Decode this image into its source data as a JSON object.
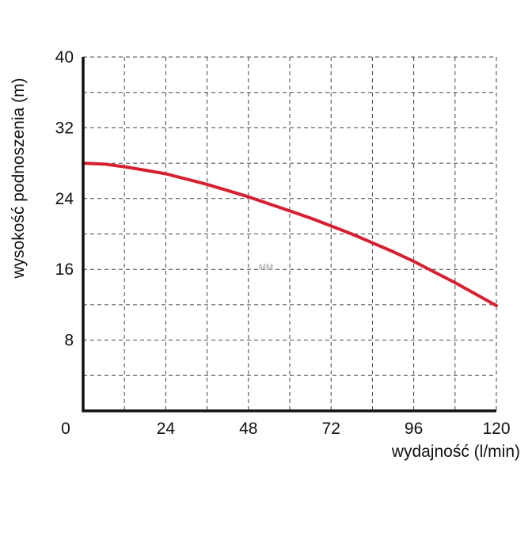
{
  "chart_data": {
    "type": "line",
    "xlabel": "wydajność (l/min)",
    "ylabel": "wysokość podnoszenia (m)",
    "xlim": [
      0,
      120
    ],
    "ylim": [
      0,
      40
    ],
    "x_ticks": [
      0,
      24,
      48,
      72,
      96,
      120
    ],
    "y_ticks": [
      8,
      16,
      24,
      32,
      40
    ],
    "x_grid": [
      0,
      12,
      24,
      36,
      48,
      60,
      72,
      84,
      96,
      108,
      120
    ],
    "y_grid": [
      4,
      8,
      12,
      16,
      20,
      24,
      28,
      32,
      36,
      40
    ],
    "grid": true,
    "watermark": "MM",
    "series": [
      {
        "color": "#d62030",
        "x": [
          0,
          6,
          12,
          18,
          24,
          30,
          36,
          42,
          48,
          54,
          60,
          66,
          72,
          78,
          84,
          90,
          96,
          102,
          108,
          114,
          120
        ],
        "y": [
          28,
          27.9,
          27.6,
          27.2,
          26.8,
          26.2,
          25.6,
          24.9,
          24.2,
          23.4,
          22.6,
          21.8,
          20.9,
          20.0,
          19.0,
          18.0,
          16.9,
          15.7,
          14.5,
          13.2,
          11.9
        ]
      }
    ]
  }
}
